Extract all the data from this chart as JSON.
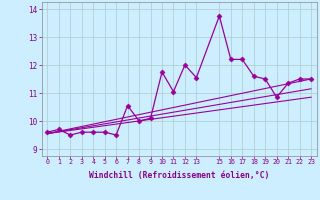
{
  "xlabel": "Windchill (Refroidissement éolien,°C)",
  "background_color": "#cceeff",
  "grid_color": "#aacccc",
  "line_color": "#990099",
  "ylim": [
    8.75,
    14.25
  ],
  "xlim": [
    -0.5,
    23.5
  ],
  "yticks": [
    9,
    10,
    11,
    12,
    13,
    14
  ],
  "x_ticks": [
    0,
    1,
    2,
    3,
    4,
    5,
    6,
    7,
    8,
    9,
    10,
    11,
    12,
    13,
    15,
    16,
    17,
    18,
    19,
    20,
    21,
    22,
    23
  ],
  "series_main": {
    "x": [
      0,
      1,
      2,
      3,
      4,
      5,
      6,
      7,
      8,
      9,
      10,
      11,
      12,
      13,
      15,
      16,
      17,
      18,
      19,
      20,
      21,
      22,
      23
    ],
    "y": [
      9.6,
      9.7,
      9.5,
      9.6,
      9.6,
      9.6,
      9.5,
      10.55,
      10.0,
      10.1,
      11.75,
      11.05,
      12.0,
      11.55,
      13.75,
      12.2,
      12.2,
      11.6,
      11.5,
      10.85,
      11.35,
      11.5,
      11.5
    ]
  },
  "trend_lines": [
    {
      "x": [
        0,
        23
      ],
      "y": [
        9.55,
        11.5
      ]
    },
    {
      "x": [
        0,
        23
      ],
      "y": [
        9.55,
        11.15
      ]
    },
    {
      "x": [
        0,
        23
      ],
      "y": [
        9.55,
        10.85
      ]
    }
  ]
}
